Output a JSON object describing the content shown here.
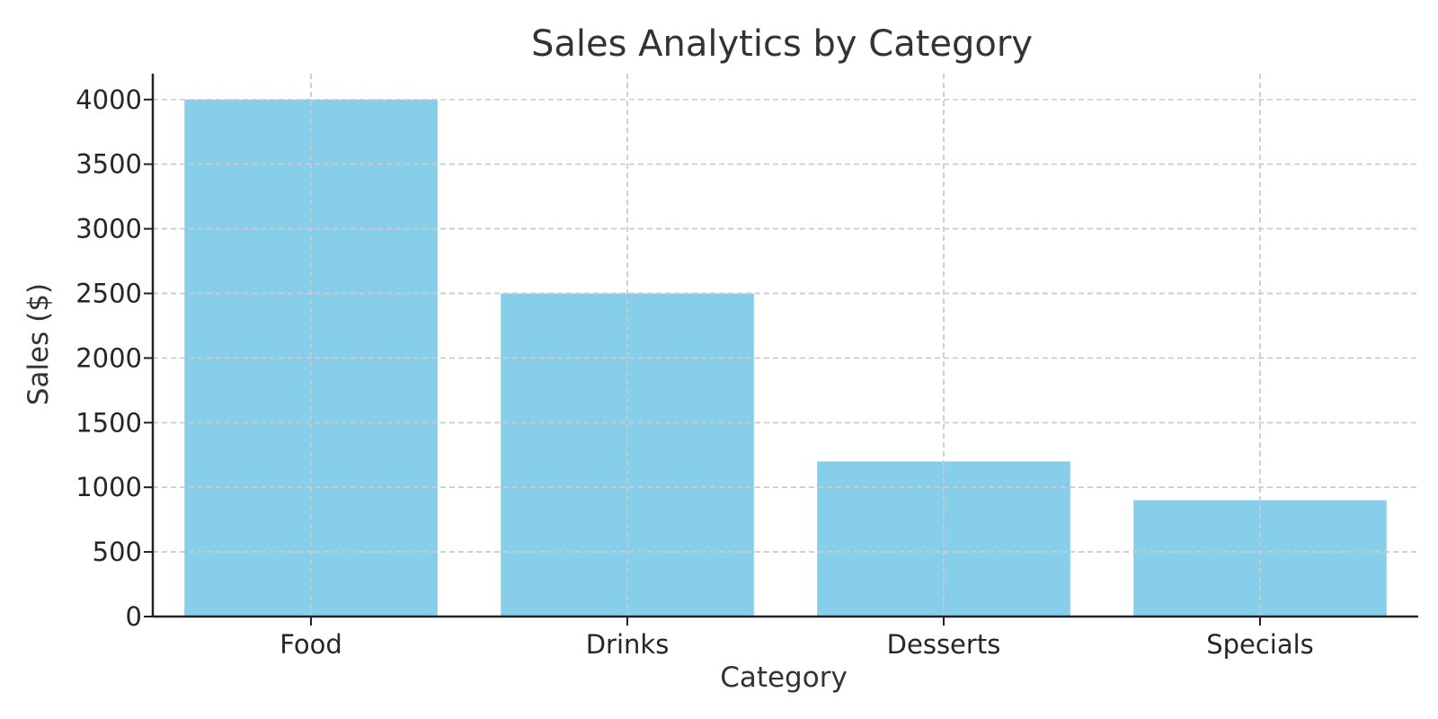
{
  "chart_data": {
    "type": "bar",
    "title": "Sales Analytics by Category",
    "xlabel": "Category",
    "ylabel": "Sales ($)",
    "categories": [
      "Food",
      "Drinks",
      "Desserts",
      "Specials"
    ],
    "values": [
      4000,
      2500,
      1200,
      900
    ],
    "ylim": [
      0,
      4200
    ],
    "yticks": [
      0,
      500,
      1000,
      1500,
      2000,
      2500,
      3000,
      3500,
      4000
    ],
    "ytick_labels": [
      "0",
      "500",
      "1000",
      "1500",
      "2000",
      "2500",
      "3000",
      "3500",
      "4000"
    ],
    "grid": true,
    "legend": "none",
    "bar_color": "#87CEEB"
  }
}
